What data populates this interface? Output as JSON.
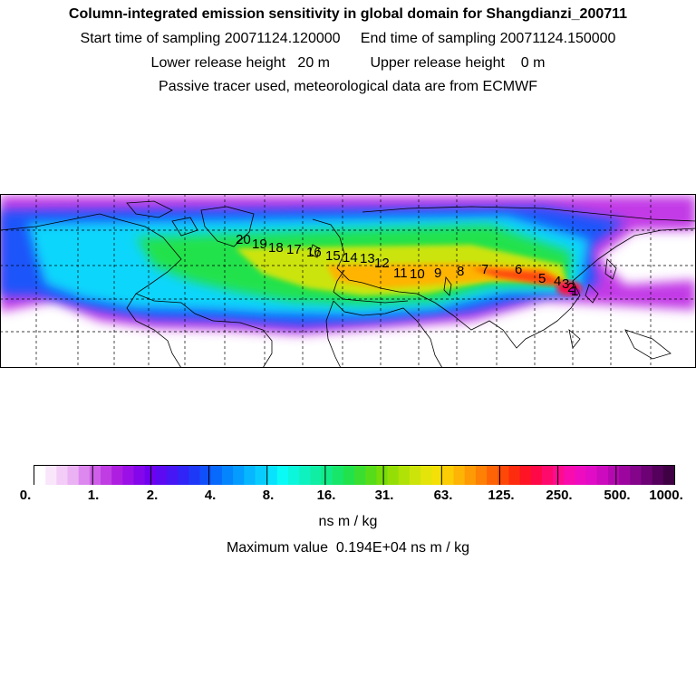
{
  "header": {
    "title": "Column-integrated emission sensitivity in global domain for Shangdianzi_200711",
    "line2": "Start time of sampling 20071124.120000     End time of sampling 20071124.150000",
    "line3": "Lower release height   20 m          Upper release height    0 m",
    "line4": "Passive tracer used, meteorological data are from ECMWF"
  },
  "map": {
    "projection": "cylindrical, 0°E centre (Atlantic), longitudes wrap",
    "colors": {
      "land_outline": "#000000",
      "graticule": "#000000",
      "background": "#ffffff"
    },
    "trajectory_labels": [
      "20",
      "19",
      "18",
      "17",
      "16",
      "15",
      "14",
      "13",
      "12",
      "11",
      "10",
      "9",
      "8",
      "7",
      "6",
      "5",
      "4",
      "3",
      "2",
      "1"
    ]
  },
  "colorbar": {
    "tick_labels": [
      "0.",
      "1.",
      "2.",
      "4.",
      "8.",
      "16.",
      "31.",
      "63.",
      "125.",
      "250.",
      "500.",
      "1000."
    ],
    "colors": [
      "#ffffff",
      "#f9e6fb",
      "#f3ccf7",
      "#eab2f3",
      "#dd88ef",
      "#cf5fe9",
      "#bf3de3",
      "#ae1ee0",
      "#9a10e6",
      "#8406ea",
      "#7000f0",
      "#5c0af2",
      "#4616f4",
      "#3024f6",
      "#1e38f8",
      "#1050fa",
      "#086afc",
      "#0484fd",
      "#049cfe",
      "#06b6fe",
      "#08ccfe",
      "#08e2fc",
      "#0afaf6",
      "#0cf6dc",
      "#0ef2c0",
      "#10eea4",
      "#12ea88",
      "#18e66a",
      "#22e24c",
      "#3ade30",
      "#56dc18",
      "#76dc0a",
      "#94de06",
      "#b0e208",
      "#cce40a",
      "#e4e40a",
      "#f4e006",
      "#fccc04",
      "#feb404",
      "#fe9a04",
      "#fe8004",
      "#fe6406",
      "#fe4808",
      "#fe2c0e",
      "#fe1424",
      "#fe0848",
      "#fe0a6c",
      "#fe0c8e",
      "#f80cae",
      "#ee0cc0",
      "#e00cc6",
      "#cc0abe",
      "#b408b0",
      "#9c069e",
      "#84048a",
      "#6c0274",
      "#54005c",
      "#400044"
    ],
    "units": "ns m / kg",
    "max_text": "Maximum value  0.194E+04 ns m / kg"
  }
}
